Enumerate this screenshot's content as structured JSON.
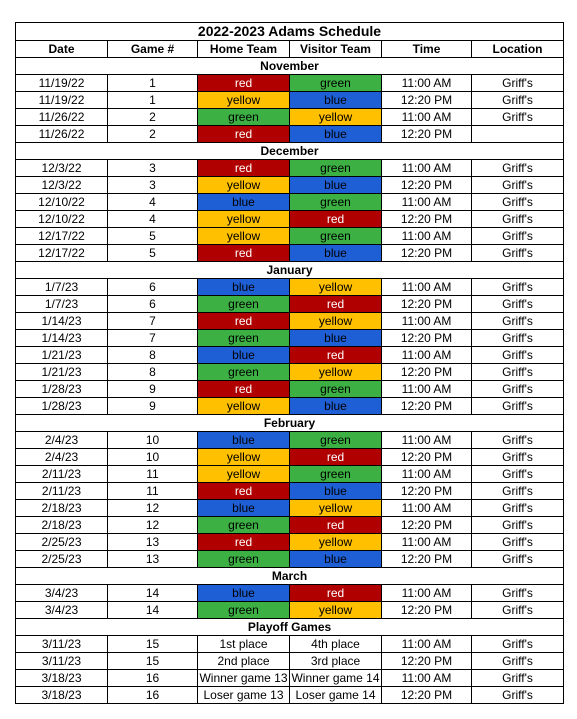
{
  "title": "2022-2023 Adams Schedule",
  "headers": [
    "Date",
    "Game #",
    "Home Team",
    "Visitor Team",
    "Time",
    "Location"
  ],
  "colors": {
    "red": "#b00000",
    "green": "#3cb043",
    "yellow": "#ffc000",
    "blue": "#1f5fd6"
  },
  "sections": [
    {
      "month": "November",
      "games": [
        {
          "date": "11/19/22",
          "game": "1",
          "home": "red",
          "visitor": "green",
          "time": "11:00 AM",
          "location": "Griff's"
        },
        {
          "date": "11/19/22",
          "game": "1",
          "home": "yellow",
          "visitor": "blue",
          "time": "12:20 PM",
          "location": "Griff's"
        },
        {
          "date": "11/26/22",
          "game": "2",
          "home": "green",
          "visitor": "yellow",
          "time": "11:00 AM",
          "location": "Griff's"
        },
        {
          "date": "11/26/22",
          "game": "2",
          "home": "red",
          "visitor": "blue",
          "time": "12:20 PM",
          "location": ""
        }
      ]
    },
    {
      "month": "December",
      "games": [
        {
          "date": "12/3/22",
          "game": "3",
          "home": "red",
          "visitor": "green",
          "time": "11:00 AM",
          "location": "Griff's"
        },
        {
          "date": "12/3/22",
          "game": "3",
          "home": "yellow",
          "visitor": "blue",
          "time": "12:20 PM",
          "location": "Griff's"
        },
        {
          "date": "12/10/22",
          "game": "4",
          "home": "blue",
          "visitor": "green",
          "time": "11:00 AM",
          "location": "Griff's"
        },
        {
          "date": "12/10/22",
          "game": "4",
          "home": "yellow",
          "visitor": "red",
          "time": "12:20 PM",
          "location": "Griff's"
        },
        {
          "date": "12/17/22",
          "game": "5",
          "home": "yellow",
          "visitor": "green",
          "time": "11:00 AM",
          "location": "Griff's"
        },
        {
          "date": "12/17/22",
          "game": "5",
          "home": "red",
          "visitor": "blue",
          "time": "12:20 PM",
          "location": "Griff's"
        }
      ]
    },
    {
      "month": "January",
      "games": [
        {
          "date": "1/7/23",
          "game": "6",
          "home": "blue",
          "visitor": "yellow",
          "time": "11:00 AM",
          "location": "Griff's"
        },
        {
          "date": "1/7/23",
          "game": "6",
          "home": "green",
          "visitor": "red",
          "time": "12:20 PM",
          "location": "Griff's"
        },
        {
          "date": "1/14/23",
          "game": "7",
          "home": "red",
          "visitor": "yellow",
          "time": "11:00 AM",
          "location": "Griff's"
        },
        {
          "date": "1/14/23",
          "game": "7",
          "home": "green",
          "visitor": "blue",
          "time": "12:20 PM",
          "location": "Griff's"
        },
        {
          "date": "1/21/23",
          "game": "8",
          "home": "blue",
          "visitor": "red",
          "time": "11:00 AM",
          "location": "Griff's"
        },
        {
          "date": "1/21/23",
          "game": "8",
          "home": "green",
          "visitor": "yellow",
          "time": "12:20 PM",
          "location": "Griff's"
        },
        {
          "date": "1/28/23",
          "game": "9",
          "home": "red",
          "visitor": "green",
          "time": "11:00 AM",
          "location": "Griff's"
        },
        {
          "date": "1/28/23",
          "game": "9",
          "home": "yellow",
          "visitor": "blue",
          "time": "12:20 PM",
          "location": "Griff's"
        }
      ]
    },
    {
      "month": "February",
      "games": [
        {
          "date": "2/4/23",
          "game": "10",
          "home": "blue",
          "visitor": "green",
          "time": "11:00 AM",
          "location": "Griff's"
        },
        {
          "date": "2/4/23",
          "game": "10",
          "home": "yellow",
          "visitor": "red",
          "time": "12:20 PM",
          "location": "Griff's"
        },
        {
          "date": "2/11/23",
          "game": "11",
          "home": "yellow",
          "visitor": "green",
          "time": "11:00 AM",
          "location": "Griff's"
        },
        {
          "date": "2/11/23",
          "game": "11",
          "home": "red",
          "visitor": "blue",
          "time": "12:20 PM",
          "location": "Griff's"
        },
        {
          "date": "2/18/23",
          "game": "12",
          "home": "blue",
          "visitor": "yellow",
          "time": "11:00 AM",
          "location": "Griff's"
        },
        {
          "date": "2/18/23",
          "game": "12",
          "home": "green",
          "visitor": "red",
          "time": "12:20 PM",
          "location": "Griff's"
        },
        {
          "date": "2/25/23",
          "game": "13",
          "home": "red",
          "visitor": "yellow",
          "time": "11:00 AM",
          "location": "Griff's"
        },
        {
          "date": "2/25/23",
          "game": "13",
          "home": "green",
          "visitor": "blue",
          "time": "12:20 PM",
          "location": "Griff's"
        }
      ]
    },
    {
      "month": "March",
      "games": [
        {
          "date": "3/4/23",
          "game": "14",
          "home": "blue",
          "visitor": "red",
          "time": "11:00 AM",
          "location": "Griff's"
        },
        {
          "date": "3/4/23",
          "game": "14",
          "home": "green",
          "visitor": "yellow",
          "time": "12:20 PM",
          "location": "Griff's"
        }
      ]
    },
    {
      "month": "Playoff Games",
      "games": [
        {
          "date": "3/11/23",
          "game": "15",
          "home": "1st place",
          "visitor": "4th place",
          "time": "11:00 AM",
          "location": "Griff's"
        },
        {
          "date": "3/11/23",
          "game": "15",
          "home": "2nd place",
          "visitor": "3rd place",
          "time": "12:20 PM",
          "location": "Griff's"
        },
        {
          "date": "3/18/23",
          "game": "16",
          "home": "Winner game 13",
          "visitor": "Winner game 14",
          "time": "11:00 AM",
          "location": "Griff's"
        },
        {
          "date": "3/18/23",
          "game": "16",
          "home": "Loser game 13",
          "visitor": "Loser game 14",
          "time": "12:20 PM",
          "location": "Griff's"
        }
      ]
    }
  ]
}
